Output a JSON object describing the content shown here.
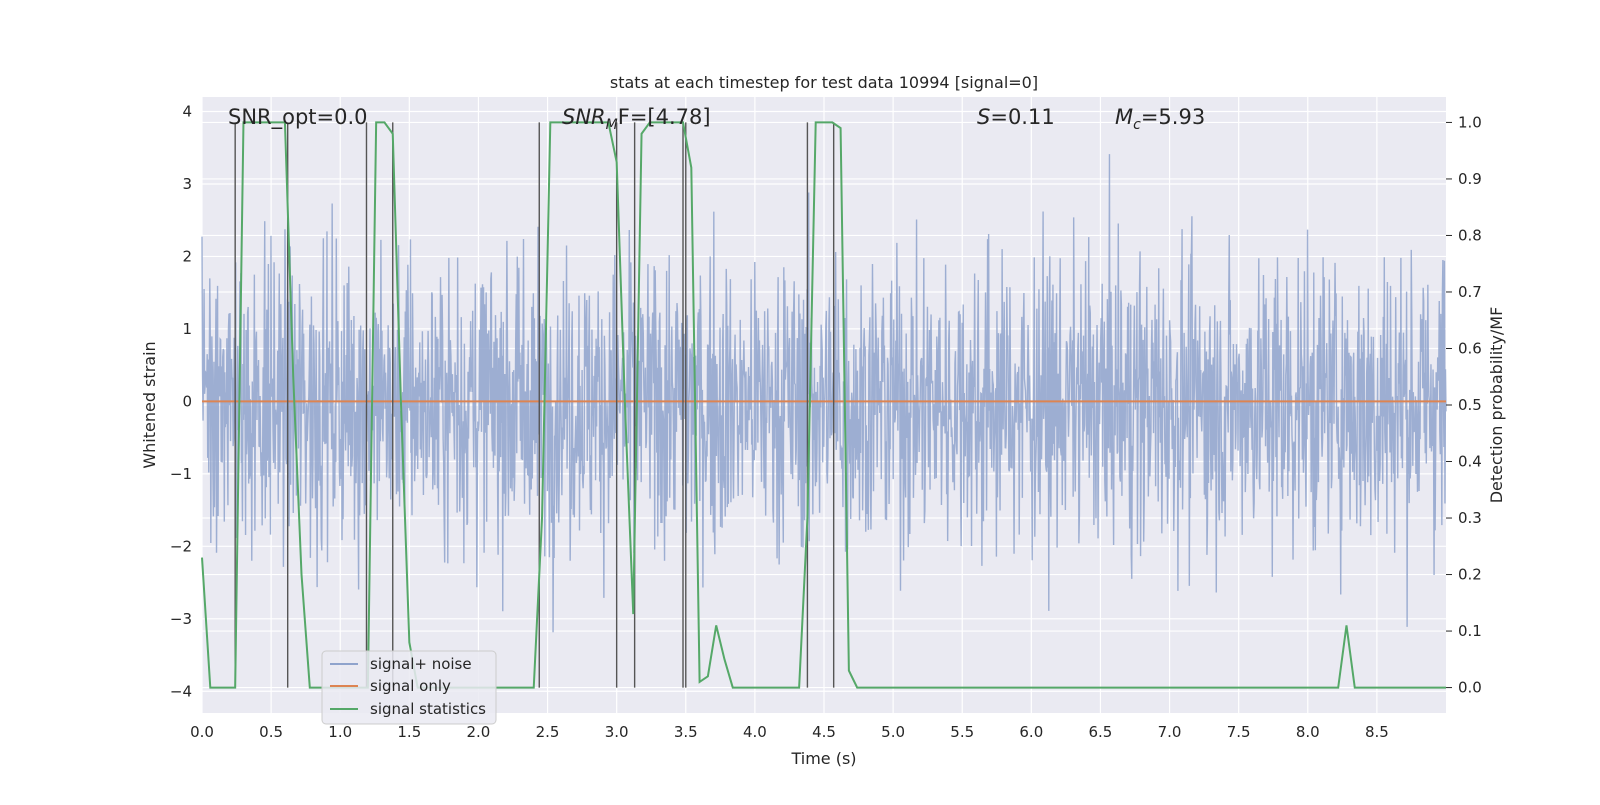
{
  "chart_data": {
    "type": "line",
    "title": "stats at each timestep for test data 10994 [signal=0]",
    "xlabel": "Time (s)",
    "ylabel_left": "Whitened strain",
    "ylabel_right": "Detection probability/MF",
    "xlim": [
      0.0,
      9.0
    ],
    "ylim_left": [
      -4.3,
      4.2
    ],
    "ylim_right": [
      -0.045,
      1.045
    ],
    "x_ticks": [
      0.0,
      0.5,
      1.0,
      1.5,
      2.0,
      2.5,
      3.0,
      3.5,
      4.0,
      4.5,
      5.0,
      5.5,
      6.0,
      6.5,
      7.0,
      7.5,
      8.0,
      8.5
    ],
    "x_tick_labels": [
      "0.0",
      "0.5",
      "1.0",
      "1.5",
      "2.0",
      "2.5",
      "3.0",
      "3.5",
      "4.0",
      "4.5",
      "5.0",
      "5.5",
      "6.0",
      "6.5",
      "7.0",
      "7.5",
      "8.0",
      "8.5"
    ],
    "y_left_ticks": [
      -4,
      -3,
      -2,
      -1,
      0,
      1,
      2,
      3,
      4
    ],
    "y_left_tick_labels": [
      "−4",
      "−3",
      "−2",
      "−1",
      "0",
      "1",
      "2",
      "3",
      "4"
    ],
    "y_right_ticks": [
      0.0,
      0.1,
      0.2,
      0.3,
      0.4,
      0.5,
      0.6,
      0.7,
      0.8,
      0.9,
      1.0
    ],
    "y_right_tick_labels": [
      "0.0",
      "0.1",
      "0.2",
      "0.3",
      "0.4",
      "0.5",
      "0.6",
      "0.7",
      "0.8",
      "0.9",
      "1.0"
    ],
    "grid": true,
    "legend_placement": "lower-left",
    "annotations": {
      "snr_opt": "SNR_opt=0.0",
      "snr_mf_name": "SNR",
      "snr_mf_sub": "M",
      "snr_mf_rest": "F=[4.78]",
      "s_name": "S",
      "s_rest": "=0.11",
      "mc_name": "M",
      "mc_sub": "c",
      "mc_rest": "=5.93"
    },
    "series": [
      {
        "name": "signal+ noise",
        "color": "#8fa3cc",
        "description": "whitened strain noise, std ~1, range about -3.5 to 3.8 in data units",
        "noise_std": 1.0,
        "noise_min": -3.5,
        "noise_max": 3.8
      },
      {
        "name": "signal only",
        "color": "#dd8452",
        "x": [
          0.0,
          9.0
        ],
        "y": [
          0.0,
          0.0
        ]
      },
      {
        "name": "signal statistics",
        "color": "#55a868",
        "x": [
          0.0,
          0.06,
          0.12,
          0.18,
          0.24,
          0.3,
          0.36,
          0.42,
          0.48,
          0.54,
          0.6,
          0.66,
          0.72,
          0.78,
          0.84,
          0.9,
          0.96,
          1.02,
          1.08,
          1.14,
          1.2,
          1.26,
          1.32,
          1.38,
          1.44,
          1.5,
          1.56,
          1.62,
          1.68,
          1.74,
          1.8,
          1.86,
          1.92,
          1.98,
          2.04,
          2.1,
          2.16,
          2.22,
          2.28,
          2.34,
          2.4,
          2.46,
          2.52,
          2.58,
          2.64,
          2.7,
          2.76,
          2.82,
          2.88,
          2.94,
          3.0,
          3.06,
          3.12,
          3.18,
          3.24,
          3.3,
          3.36,
          3.42,
          3.48,
          3.54,
          3.6,
          3.66,
          3.72,
          3.78,
          3.84,
          3.9,
          3.96,
          4.02,
          4.08,
          4.14,
          4.2,
          4.26,
          4.32,
          4.38,
          4.44,
          4.5,
          4.56,
          4.62,
          4.68,
          4.74,
          4.8,
          4.86,
          4.92,
          4.98,
          5.04,
          5.1,
          5.16,
          5.22,
          5.28,
          5.34,
          5.4,
          5.46,
          5.52,
          5.58,
          5.64,
          5.7,
          5.76,
          5.82,
          5.88,
          5.94,
          6.0,
          6.06,
          6.12,
          6.18,
          6.24,
          6.3,
          6.36,
          6.42,
          6.48,
          6.54,
          6.6,
          6.66,
          6.72,
          6.78,
          6.84,
          6.9,
          6.96,
          7.02,
          7.08,
          7.14,
          7.2,
          7.26,
          7.32,
          7.38,
          7.44,
          7.5,
          7.56,
          7.62,
          7.68,
          7.74,
          7.8,
          7.86,
          7.92,
          7.98,
          8.04,
          8.1,
          8.16,
          8.22,
          8.28,
          8.34,
          8.4,
          8.46,
          8.52,
          8.58,
          8.64,
          8.7,
          8.76,
          8.82,
          8.88,
          8.94,
          9.0
        ],
        "y": [
          0.23,
          0.0,
          0.0,
          0.0,
          0.0,
          1.0,
          1.0,
          1.0,
          1.0,
          1.0,
          1.0,
          0.55,
          0.2,
          0.0,
          0.0,
          0.0,
          0.0,
          0.0,
          0.0,
          0.0,
          0.0,
          1.0,
          1.0,
          0.98,
          0.5,
          0.08,
          0.0,
          0.0,
          0.0,
          0.0,
          0.0,
          0.0,
          0.0,
          0.0,
          0.0,
          0.0,
          0.0,
          0.0,
          0.0,
          0.0,
          0.0,
          0.3,
          1.0,
          1.0,
          1.0,
          1.0,
          1.0,
          1.0,
          1.0,
          1.0,
          0.93,
          0.5,
          0.13,
          0.98,
          1.0,
          1.0,
          1.0,
          1.0,
          1.0,
          0.92,
          0.01,
          0.02,
          0.11,
          0.05,
          0.0,
          0.0,
          0.0,
          0.0,
          0.0,
          0.0,
          0.0,
          0.0,
          0.0,
          0.3,
          1.0,
          1.0,
          1.0,
          0.99,
          0.03,
          0.0,
          0.0,
          0.0,
          0.0,
          0.0,
          0.0,
          0.0,
          0.0,
          0.0,
          0.0,
          0.0,
          0.0,
          0.0,
          0.0,
          0.0,
          0.0,
          0.0,
          0.0,
          0.0,
          0.0,
          0.0,
          0.0,
          0.0,
          0.0,
          0.0,
          0.0,
          0.0,
          0.0,
          0.0,
          0.0,
          0.0,
          0.0,
          0.0,
          0.0,
          0.0,
          0.0,
          0.0,
          0.0,
          0.0,
          0.0,
          0.0,
          0.0,
          0.0,
          0.0,
          0.0,
          0.0,
          0.0,
          0.0,
          0.0,
          0.0,
          0.0,
          0.0,
          0.0,
          0.0,
          0.0,
          0.0,
          0.0,
          0.0,
          0.0,
          0.11,
          0.0,
          0.0,
          0.0,
          0.0,
          0.0,
          0.0,
          0.0,
          0.0,
          0.0,
          0.0,
          0.0,
          0.0
        ]
      }
    ],
    "vertical_markers": {
      "color": "#555555",
      "x": [
        0.24,
        0.62,
        1.19,
        1.38,
        2.44,
        3.0,
        3.13,
        3.48,
        3.5,
        4.38,
        4.57
      ],
      "y_top": 1.0
    },
    "legend": [
      {
        "label": "signal+ noise",
        "color": "#8fa3cc"
      },
      {
        "label": "signal only",
        "color": "#dd8452"
      },
      {
        "label": "signal statistics",
        "color": "#55a868"
      }
    ]
  }
}
